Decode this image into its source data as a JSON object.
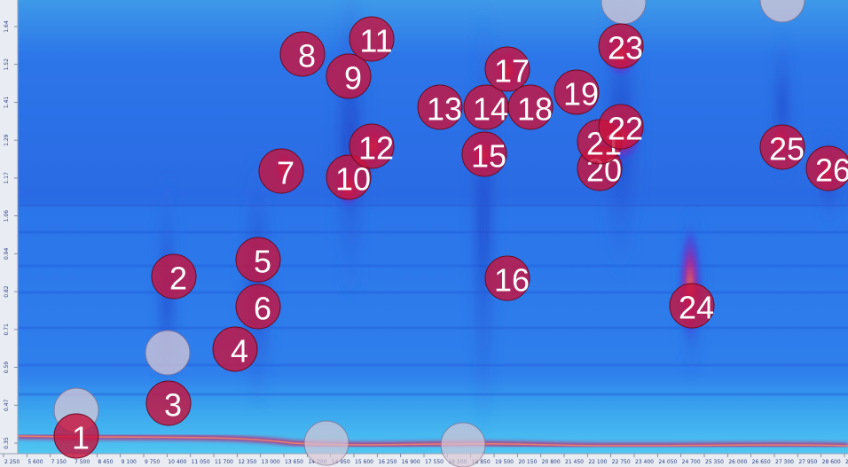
{
  "peak_markers": [
    {
      "label": "1"
    },
    {
      "label": "2"
    },
    {
      "label": "3"
    },
    {
      "label": "4"
    },
    {
      "label": "5"
    },
    {
      "label": "6"
    },
    {
      "label": "7"
    },
    {
      "label": "8"
    },
    {
      "label": "9"
    },
    {
      "label": "10"
    },
    {
      "label": "11"
    },
    {
      "label": "12"
    },
    {
      "label": "13"
    },
    {
      "label": "14"
    },
    {
      "label": "15"
    },
    {
      "label": "16"
    },
    {
      "label": "17"
    },
    {
      "label": "18"
    },
    {
      "label": "19"
    },
    {
      "label": "20"
    },
    {
      "label": "21"
    },
    {
      "label": "22"
    },
    {
      "label": "23"
    },
    {
      "label": "24"
    },
    {
      "label": "25"
    },
    {
      "label": "26"
    }
  ],
  "x_axis_ticks": [
    "2 250",
    "5 600",
    "7 150",
    "7 500",
    "8 450",
    "9 100",
    "9 750",
    "10 400",
    "11 050",
    "11 700",
    "12 350",
    "13 000",
    "13 650",
    "14 300",
    "14 950",
    "15 600",
    "16 250",
    "16 900",
    "17 550",
    "18 200",
    "18 850",
    "19 500",
    "20 150",
    "20 800",
    "21 450",
    "22 100",
    "22 750",
    "23 400",
    "24 050",
    "24 700",
    "25 350",
    "26 000",
    "26 650",
    "27 300",
    "27 950",
    "28 600",
    "29 250"
  ],
  "y_axis_ticks": [
    "1.64",
    "1.52",
    "1.41",
    "1.29",
    "1.17",
    "1.06",
    "0.94",
    "0.82",
    "0.71",
    "0.59",
    "0.47",
    "0.35"
  ],
  "colors": {
    "background": "#2a74e8",
    "marker_fill": "#c7133f",
    "marker_stroke": "#6b0a22",
    "ghost_marker_fill": "#d8c8d6",
    "label": "#ffffff"
  }
}
